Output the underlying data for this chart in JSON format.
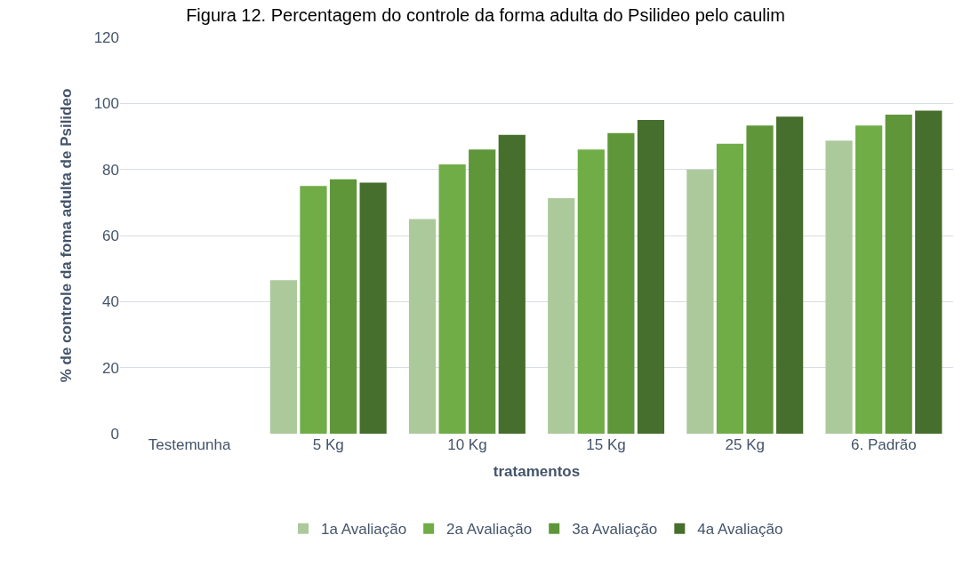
{
  "chart_data": {
    "type": "bar",
    "title": "Figura 12. Percentagem do controle da forma adulta do Psilideo pelo caulim",
    "xlabel": "tratamentos",
    "ylabel": "% de controle da foma adulta de Psilideo",
    "categories": [
      "Testemunha",
      "5 Kg",
      "10 Kg",
      "15 Kg",
      "25 Kg",
      "6. Padrão"
    ],
    "series": [
      {
        "name": "1a Avaliação",
        "color": "#acc99c",
        "values": [
          0,
          46.5,
          65,
          71.3,
          80,
          88.7
        ]
      },
      {
        "name": "2a Avaliação",
        "color": "#70ad47",
        "values": [
          0,
          75,
          81.5,
          86,
          87.8,
          93.3
        ]
      },
      {
        "name": "3a Avaliação",
        "color": "#5e9639",
        "values": [
          0,
          77,
          86,
          91,
          93.3,
          96.6
        ]
      },
      {
        "name": "4a Avaliação",
        "color": "#466e2c",
        "values": [
          0,
          76,
          90.5,
          95,
          96,
          97.8
        ]
      }
    ],
    "ylim": [
      0,
      120
    ],
    "yticks": [
      0,
      20,
      40,
      60,
      80,
      100,
      120
    ],
    "grid": "y",
    "legend": "bottom"
  }
}
